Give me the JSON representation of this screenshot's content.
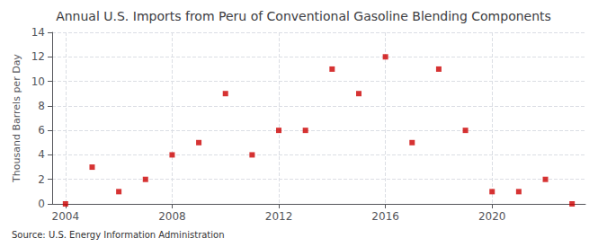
{
  "chart_data": {
    "type": "scatter",
    "title": "Annual U.S. Imports from Peru of Conventional Gasoline Blending Components",
    "ylabel": "Thousand Barrels per Day",
    "annotations": [
      "Source: U.S. Energy Information Administration"
    ],
    "x": [
      2004,
      2005,
      2006,
      2007,
      2008,
      2009,
      2010,
      2011,
      2012,
      2013,
      2014,
      2015,
      2016,
      2017,
      2018,
      2019,
      2020,
      2021,
      2022,
      2023
    ],
    "values": [
      0,
      3,
      1,
      2,
      4,
      5,
      9,
      4,
      6,
      6,
      11,
      9,
      12,
      5,
      11,
      6,
      1,
      1,
      2,
      0
    ],
    "color": "#cc0000",
    "marker": "square",
    "xlim": [
      2003.5,
      2023.5
    ],
    "xticks": [
      2004,
      2008,
      2012,
      2016,
      2020
    ],
    "ylim": [
      0,
      14
    ],
    "yticks": [
      0,
      2,
      4,
      6,
      8,
      10,
      12,
      14
    ],
    "grid": true
  }
}
